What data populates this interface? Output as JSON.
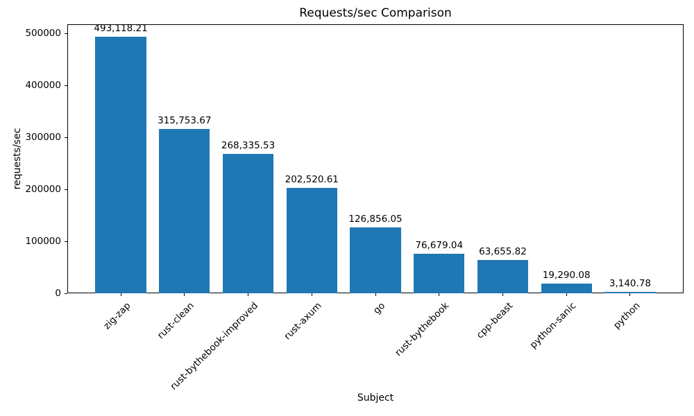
{
  "chart_data": {
    "type": "bar",
    "title": "Requests/sec Comparison",
    "xlabel": "Subject",
    "ylabel": "requests/sec",
    "categories": [
      "zig-zap",
      "rust-clean",
      "rust-bythebook-improved",
      "rust-axum",
      "go",
      "rust-bythebook",
      "cpp-beast",
      "python-sanic",
      "python"
    ],
    "values": [
      493118.21,
      315753.67,
      268335.53,
      202520.61,
      126856.05,
      76679.04,
      63655.82,
      19290.08,
      3140.78
    ],
    "value_labels": [
      "493,118.21",
      "315,753.67",
      "268,335.53",
      "202,520.61",
      "126,856.05",
      "76,679.04",
      "63,655.82",
      "19,290.08",
      "3,140.78"
    ],
    "y_ticks": [
      0,
      100000,
      200000,
      300000,
      400000,
      500000
    ],
    "y_tick_labels": [
      "0",
      "100000",
      "200000",
      "300000",
      "400000",
      "500000"
    ],
    "ylim": [
      0,
      517774
    ],
    "bar_color": "#1f77b4",
    "grid": false,
    "legend": null
  }
}
